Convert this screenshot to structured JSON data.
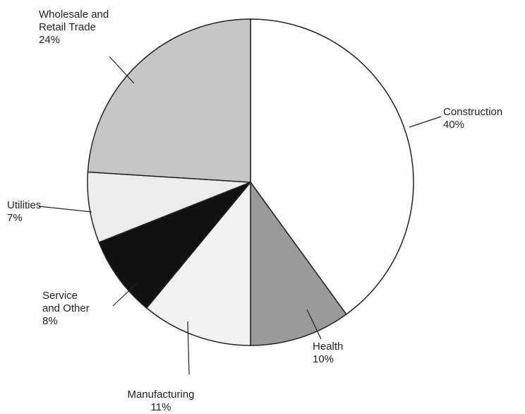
{
  "chart_data": {
    "type": "pie",
    "categories": [
      "Construction",
      "Health",
      "Manufacturing",
      "Service\nand Other",
      "Utilities",
      "Wholesale and\nRetail Trade"
    ],
    "values": [
      40,
      10,
      11,
      8,
      7,
      24
    ],
    "value_labels": [
      "40%",
      "10%",
      "11%",
      "8%",
      "7%",
      "24%"
    ],
    "colors": [
      "#ffffff",
      "#9a9a9a",
      "#f2f2f2",
      "#111111",
      "#ececec",
      "#c6c6c6"
    ]
  }
}
